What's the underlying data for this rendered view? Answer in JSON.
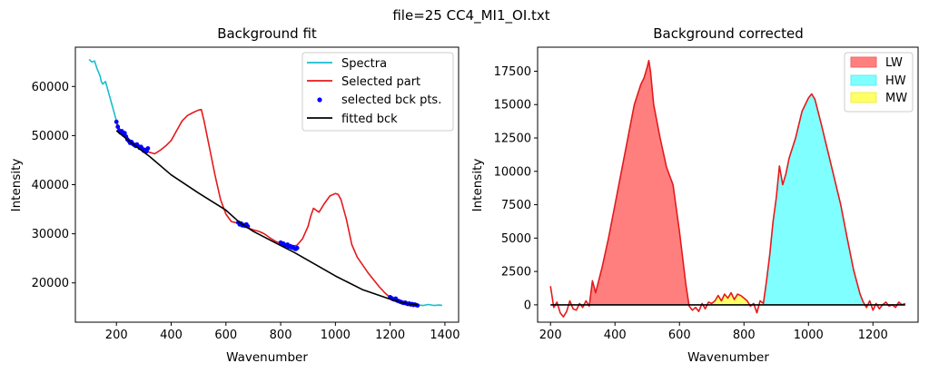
{
  "suptitle": "file=25 CC4_MI1_OI.txt",
  "chart_data": [
    {
      "type": "line",
      "title": "Background fit",
      "xlabel": "Wavenumber",
      "ylabel": "Intensity",
      "xlim": [
        50,
        1450
      ],
      "ylim": [
        12000,
        68000
      ],
      "xticks": [
        200,
        400,
        600,
        800,
        1000,
        1200,
        1400
      ],
      "yticks": [
        20000,
        30000,
        40000,
        50000,
        60000
      ],
      "legend_position": "top-right",
      "grid": false,
      "series": [
        {
          "name": "Spectra",
          "kind": "line",
          "color": "#17becf",
          "x": [
            100,
            110,
            120,
            130,
            140,
            145,
            150,
            160,
            170,
            180,
            190,
            200,
            210,
            220
          ],
          "y": [
            65500,
            65000,
            65200,
            63500,
            62200,
            61000,
            60500,
            61000,
            59000,
            57000,
            55000,
            53000,
            51500,
            50500
          ]
        },
        {
          "name": "Spectra",
          "kind": "line",
          "color": "#17becf",
          "x": [
            1290,
            1300,
            1320,
            1340,
            1360,
            1380,
            1390
          ],
          "y": [
            15600,
            15500,
            15400,
            15600,
            15400,
            15500,
            15400
          ]
        },
        {
          "name": "Selected part",
          "kind": "line",
          "color": "#e41a1c",
          "x": [
            200,
            220,
            240,
            260,
            280,
            300,
            320,
            340,
            360,
            380,
            400,
            420,
            440,
            460,
            480,
            500,
            510,
            520,
            540,
            560,
            580,
            600,
            620,
            640,
            660,
            680,
            700,
            720,
            740,
            760,
            780,
            800,
            820,
            840,
            860,
            880,
            900,
            910,
            920,
            940,
            960,
            980,
            1000,
            1010,
            1020,
            1040,
            1060,
            1080,
            1100,
            1120,
            1140,
            1160,
            1180,
            1200,
            1220,
            1240,
            1260,
            1280,
            1300
          ],
          "y": [
            52500,
            50500,
            49200,
            48300,
            47800,
            47200,
            46600,
            46300,
            47000,
            47900,
            49000,
            51000,
            53000,
            54100,
            54700,
            55200,
            55300,
            53000,
            47500,
            42000,
            37000,
            34000,
            32500,
            32200,
            31800,
            31200,
            30800,
            30500,
            30000,
            29200,
            28500,
            28000,
            27600,
            27400,
            27700,
            29000,
            31500,
            33600,
            35200,
            34400,
            36200,
            37700,
            38200,
            38000,
            37000,
            33000,
            27800,
            25200,
            23600,
            22000,
            20600,
            19200,
            18000,
            17000,
            16300,
            15900,
            15700,
            15500,
            15400
          ]
        },
        {
          "name": "selected bck pts.",
          "kind": "scatter",
          "color": "#0000ff",
          "x": [
            200,
            205,
            210,
            215,
            220,
            225,
            230,
            235,
            240,
            245,
            250,
            255,
            260,
            265,
            270,
            275,
            280,
            285,
            290,
            295,
            300,
            305,
            310,
            315,
            645,
            650,
            655,
            660,
            665,
            670,
            675,
            680,
            800,
            805,
            810,
            815,
            820,
            825,
            830,
            835,
            840,
            845,
            850,
            855,
            860,
            1200,
            1205,
            1210,
            1215,
            1220,
            1225,
            1230,
            1235,
            1240,
            1245,
            1250,
            1255,
            1260,
            1265,
            1270,
            1275,
            1280,
            1285,
            1290,
            1295,
            1300
          ],
          "y": [
            52800,
            51800,
            51000,
            50600,
            50900,
            50200,
            50500,
            49800,
            49200,
            48900,
            48500,
            48700,
            48300,
            48100,
            47900,
            48200,
            47800,
            47500,
            47700,
            47300,
            46900,
            47100,
            46800,
            47400,
            32300,
            31900,
            32100,
            31700,
            31800,
            31600,
            31900,
            31500,
            28200,
            27900,
            28000,
            27700,
            27600,
            27800,
            27400,
            27500,
            27200,
            27300,
            27000,
            26900,
            27100,
            17100,
            16900,
            16700,
            16600,
            16800,
            16400,
            16300,
            16200,
            16100,
            16000,
            15900,
            16000,
            15800,
            15700,
            15800,
            15600,
            15700,
            15500,
            15600,
            15500,
            15400
          ]
        },
        {
          "name": "fitted bck",
          "kind": "line",
          "color": "#000000",
          "x": [
            200,
            260,
            320,
            400,
            500,
            600,
            650,
            700,
            800,
            850,
            900,
            1000,
            1100,
            1200,
            1250,
            1300
          ],
          "y": [
            51000,
            48300,
            45800,
            42000,
            38300,
            34800,
            32300,
            30500,
            27600,
            26200,
            24600,
            21400,
            18600,
            16700,
            15900,
            15500
          ]
        }
      ]
    },
    {
      "type": "area",
      "title": "Background corrected",
      "xlabel": "Wavenumber",
      "ylabel": "Intensity",
      "xlim": [
        160,
        1340
      ],
      "ylim": [
        -1300,
        19300
      ],
      "xticks": [
        200,
        400,
        600,
        800,
        1000,
        1200
      ],
      "yticks": [
        0,
        2500,
        5000,
        7500,
        10000,
        12500,
        15000,
        17500
      ],
      "legend_position": "top-right",
      "grid": false,
      "series": [
        {
          "name": "LW",
          "kind": "fill",
          "color": "#ff7f7f",
          "x": [
            320,
            330,
            340,
            360,
            380,
            400,
            420,
            440,
            460,
            480,
            490,
            500,
            505,
            510,
            520,
            540,
            560,
            580,
            600,
            620,
            630
          ],
          "y": [
            0,
            1800,
            900,
            2800,
            5000,
            7500,
            10000,
            12500,
            15000,
            16500,
            17000,
            17800,
            18300,
            17500,
            15000,
            12500,
            10300,
            9000,
            5500,
            1500,
            0
          ]
        },
        {
          "name": "MW",
          "kind": "fill",
          "color": "#ffff66",
          "x": [
            700,
            710,
            720,
            730,
            740,
            750,
            760,
            770,
            780,
            790,
            800,
            810,
            820
          ],
          "y": [
            0,
            200,
            600,
            300,
            700,
            500,
            900,
            400,
            800,
            600,
            500,
            300,
            0
          ]
        },
        {
          "name": "HW",
          "kind": "fill",
          "color": "#7fffff",
          "x": [
            860,
            870,
            880,
            890,
            900,
            910,
            920,
            930,
            940,
            960,
            980,
            1000,
            1010,
            1020,
            1040,
            1060,
            1080,
            1100,
            1120,
            1140,
            1160,
            1170
          ],
          "y": [
            0,
            1800,
            3800,
            6200,
            8000,
            10400,
            9000,
            9800,
            11000,
            12500,
            14500,
            15500,
            15800,
            15400,
            13500,
            11500,
            9500,
            7500,
            5000,
            2600,
            800,
            0
          ]
        },
        {
          "name": "",
          "kind": "line",
          "color": "#e41a1c",
          "x": [
            200,
            210,
            220,
            230,
            240,
            250,
            260,
            270,
            280,
            290,
            300,
            310,
            320,
            330,
            340,
            360,
            380,
            400,
            420,
            440,
            460,
            480,
            490,
            500,
            505,
            510,
            520,
            540,
            560,
            580,
            600,
            620,
            630,
            640,
            650,
            660,
            670,
            680,
            690,
            700,
            710,
            720,
            730,
            740,
            750,
            760,
            770,
            780,
            790,
            800,
            810,
            820,
            830,
            840,
            850,
            860,
            870,
            880,
            890,
            900,
            910,
            920,
            930,
            940,
            960,
            980,
            1000,
            1010,
            1020,
            1040,
            1060,
            1080,
            1100,
            1120,
            1140,
            1160,
            1170,
            1180,
            1190,
            1200,
            1210,
            1220,
            1230,
            1240,
            1250,
            1260,
            1270,
            1280,
            1290,
            1300
          ],
          "y": [
            1400,
            -200,
            200,
            -600,
            -900,
            -500,
            300,
            -300,
            -400,
            100,
            -200,
            300,
            -100,
            1800,
            900,
            2800,
            5000,
            7500,
            10000,
            12500,
            15000,
            16500,
            17000,
            17800,
            18300,
            17500,
            15000,
            12500,
            10300,
            9000,
            5500,
            1500,
            -100,
            -400,
            -200,
            -500,
            100,
            -300,
            200,
            100,
            300,
            700,
            300,
            800,
            500,
            900,
            400,
            800,
            700,
            500,
            300,
            -100,
            100,
            -600,
            300,
            100,
            1800,
            3800,
            6200,
            8000,
            10400,
            9000,
            9800,
            11000,
            12500,
            14500,
            15500,
            15800,
            15400,
            13500,
            11500,
            9500,
            7500,
            5000,
            2600,
            800,
            200,
            -200,
            300,
            -400,
            100,
            -300,
            0,
            200,
            -100,
            0,
            -200,
            200,
            0,
            100
          ]
        },
        {
          "name": "",
          "kind": "line",
          "color": "#000000",
          "x": [
            200,
            1300
          ],
          "y": [
            0,
            0
          ]
        }
      ]
    }
  ]
}
